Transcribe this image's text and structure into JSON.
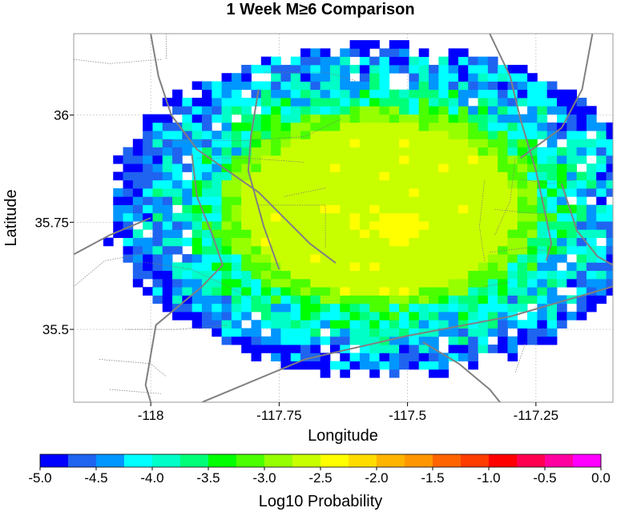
{
  "chart_data": {
    "type": "heatmap",
    "title": "1 Week M≥6 Comparison",
    "xlabel": "Longitude",
    "ylabel": "Latitude",
    "xlim": [
      -118.15,
      -117.1
    ],
    "ylim": [
      35.33,
      36.19
    ],
    "x_ticks": [
      -118,
      -117.75,
      -117.5,
      -117.25
    ],
    "x_tick_labels": [
      "-118",
      "-117.75",
      "-117.5",
      "-117.25"
    ],
    "y_ticks": [
      35.5,
      35.75,
      36
    ],
    "y_tick_labels": [
      "35.5",
      "35.75",
      "36"
    ],
    "grid": true,
    "grid_style": "dotted",
    "cell_size_deg": 0.0192,
    "field": {
      "center_lon": -117.555,
      "center_lat": 35.782,
      "outer_radius_lon": 0.52,
      "outer_radius_lat": 0.385,
      "peak_value": -2.3,
      "plateau_value": -2.6,
      "edge_value": -4.6,
      "noise_amplitude": 0.6
    },
    "faults": [
      [
        [
          -118.0,
          36.19
        ],
        [
          -117.985,
          36.09
        ],
        [
          -117.96,
          36.0
        ],
        [
          -117.91,
          35.92
        ],
        [
          -117.79,
          35.82
        ],
        [
          -117.69,
          35.7
        ],
        [
          -117.64,
          35.655
        ]
      ],
      [
        [
          -117.79,
          36.06
        ],
        [
          -117.805,
          35.95
        ],
        [
          -117.81,
          35.87
        ],
        [
          -117.78,
          35.74
        ],
        [
          -117.75,
          35.64
        ]
      ],
      [
        [
          -117.92,
          35.91
        ],
        [
          -117.91,
          35.81
        ],
        [
          -117.88,
          35.72
        ],
        [
          -117.86,
          35.65
        ],
        [
          -117.9,
          35.6
        ],
        [
          -117.99,
          35.51
        ],
        [
          -118.0,
          35.44
        ],
        [
          -118.01,
          35.37
        ],
        [
          -118.0,
          35.33
        ]
      ],
      [
        [
          -118.15,
          35.675
        ],
        [
          -118.08,
          35.72
        ],
        [
          -118.0,
          35.76
        ]
      ],
      [
        [
          -117.9,
          35.33
        ],
        [
          -117.7,
          35.43
        ],
        [
          -117.5,
          35.485
        ],
        [
          -117.3,
          35.53
        ],
        [
          -117.1,
          35.6
        ]
      ],
      [
        [
          -117.34,
          36.19
        ],
        [
          -117.3,
          36.09
        ],
        [
          -117.28,
          35.99
        ],
        [
          -117.25,
          35.87
        ],
        [
          -117.23,
          35.76
        ],
        [
          -117.22,
          35.7
        ],
        [
          -117.23,
          35.66
        ]
      ],
      [
        [
          -117.28,
          35.9
        ],
        [
          -117.2,
          35.97
        ],
        [
          -117.16,
          36.06
        ],
        [
          -117.14,
          36.19
        ]
      ],
      [
        [
          -117.47,
          35.47
        ],
        [
          -117.4,
          35.42
        ],
        [
          -117.34,
          35.36
        ],
        [
          -117.32,
          35.33
        ]
      ],
      [
        [
          -117.2,
          35.84
        ],
        [
          -117.17,
          35.73
        ],
        [
          -117.13,
          35.67
        ],
        [
          -117.1,
          35.65
        ]
      ]
    ],
    "roads": [
      [
        [
          -117.98,
          35.94
        ],
        [
          -117.82,
          35.94
        ],
        [
          -117.7,
          35.95
        ],
        [
          -117.63,
          35.99
        ]
      ],
      [
        [
          -117.79,
          35.79
        ],
        [
          -117.66,
          35.79
        ],
        [
          -117.66,
          35.69
        ]
      ],
      [
        [
          -117.91,
          35.9
        ],
        [
          -117.82,
          35.9
        ],
        [
          -117.7,
          35.89
        ]
      ],
      [
        [
          -117.74,
          35.81
        ],
        [
          -117.66,
          35.83
        ]
      ],
      [
        [
          -118.03,
          35.66
        ],
        [
          -117.92,
          35.64
        ],
        [
          -117.85,
          35.6
        ],
        [
          -117.8,
          35.57
        ]
      ],
      [
        [
          -118.15,
          35.6
        ],
        [
          -118.09,
          35.66
        ],
        [
          -118.0,
          35.68
        ]
      ],
      [
        [
          -118.05,
          35.5
        ],
        [
          -117.95,
          35.5
        ],
        [
          -117.85,
          35.51
        ]
      ],
      [
        [
          -118.1,
          35.43
        ],
        [
          -118.0,
          35.42
        ],
        [
          -117.97,
          35.39
        ]
      ],
      [
        [
          -118.08,
          35.36
        ],
        [
          -117.98,
          35.35
        ]
      ],
      [
        [
          -117.98,
          36.13
        ],
        [
          -118.08,
          36.12
        ],
        [
          -118.15,
          36.13
        ]
      ],
      [
        [
          -117.97,
          36.19
        ],
        [
          -117.97,
          36.13
        ]
      ],
      [
        [
          -117.78,
          36.1
        ],
        [
          -117.66,
          36.1
        ],
        [
          -117.6,
          36.08
        ]
      ],
      [
        [
          -117.28,
          35.85
        ],
        [
          -117.22,
          35.84
        ],
        [
          -117.17,
          35.85
        ]
      ],
      [
        [
          -117.33,
          35.78
        ],
        [
          -117.25,
          35.77
        ],
        [
          -117.17,
          35.78
        ]
      ],
      [
        [
          -117.34,
          35.68
        ],
        [
          -117.27,
          35.69
        ],
        [
          -117.21,
          35.68
        ]
      ],
      [
        [
          -117.35,
          35.6
        ],
        [
          -117.3,
          35.61
        ]
      ],
      [
        [
          -117.33,
          35.72
        ],
        [
          -117.3,
          35.8
        ],
        [
          -117.29,
          35.9
        ]
      ],
      [
        [
          -117.35,
          35.66
        ],
        [
          -117.36,
          35.74
        ],
        [
          -117.35,
          35.85
        ]
      ],
      [
        [
          -117.29,
          35.4
        ],
        [
          -117.27,
          35.47
        ]
      ]
    ],
    "colorbar": {
      "label": "Log10 Probability",
      "min": -5.0,
      "max": 0.0,
      "step": 0.25,
      "colors": [
        "#0000ff",
        "#1e64f0",
        "#0096ff",
        "#00ffff",
        "#00ffc8",
        "#00ff78",
        "#00ff00",
        "#4bff00",
        "#96ff00",
        "#c8ff00",
        "#ffff00",
        "#ffdc00",
        "#ffb400",
        "#ff9600",
        "#ff6400",
        "#ff3c00",
        "#ff0000",
        "#ff0050",
        "#ff00a0",
        "#ff00ff"
      ],
      "ticks": [
        -5.0,
        -4.5,
        -4.0,
        -3.5,
        -3.0,
        -2.5,
        -2.0,
        -1.5,
        -1.0,
        -0.5,
        0.0
      ],
      "tick_labels": [
        "-5.0",
        "-4.5",
        "-4.0",
        "-3.5",
        "-3.0",
        "-2.5",
        "-2.0",
        "-1.5",
        "-1.0",
        "-0.5",
        "0.0"
      ]
    }
  }
}
